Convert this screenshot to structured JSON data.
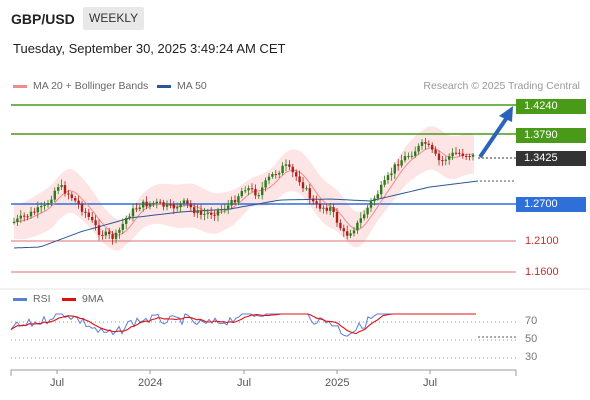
{
  "header": {
    "pair": "GBP/USD",
    "timeframe": "WEEKLY",
    "datetime": "Tuesday, September 30, 2025 3:49:24 AM CET"
  },
  "legend": {
    "ma20": {
      "label": "MA 20 + Bollinger Bands",
      "color": "#f08c8c"
    },
    "ma50": {
      "label": "MA 50",
      "color": "#2c5597"
    },
    "credit": "Research © 2025 Trading Central"
  },
  "levels": {
    "r2": {
      "label": "1.4240",
      "color": "#4a9a1a"
    },
    "r1": {
      "label": "1.3790",
      "color": "#4a9a1a"
    },
    "last": {
      "label": "1.3425",
      "color": "#333333"
    },
    "s1": {
      "label": "1.2700",
      "color": "#2f6fd8"
    },
    "s2": {
      "label": "1.2100",
      "color": "#c8302a"
    },
    "s3": {
      "label": "1.1600",
      "color": "#c8302a"
    }
  },
  "rsi_panel": {
    "rsi": {
      "label": "RSI",
      "color": "#5b7fd6"
    },
    "ma9": {
      "label": "9MA",
      "color": "#e01010"
    },
    "levels": [
      "70",
      "50",
      "30"
    ]
  },
  "x_axis": [
    "Jul",
    "2024",
    "Jul",
    "2025",
    "Jul"
  ]
}
